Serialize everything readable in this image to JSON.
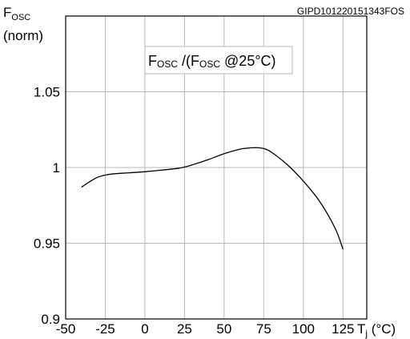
{
  "chart_data": {
    "type": "line",
    "doc_id": "GIPD101220151343FOS",
    "title": {
      "main": "F",
      "sub": "OSC",
      "mid": " /(F",
      "sub2": "OSC",
      "tail": " @25°C)"
    },
    "ylabel": {
      "main": "F",
      "sub": "OSC",
      "unit": "(norm)"
    },
    "xlabel": {
      "main": "T",
      "sub": "j",
      "unit": " (°C)"
    },
    "xlim": [
      -50,
      140
    ],
    "ylim": [
      0.9,
      1.1
    ],
    "xticks": [
      -50,
      -25,
      0,
      25,
      50,
      75,
      100,
      125
    ],
    "xtick_labels": [
      "-50",
      "-25",
      "0",
      "25",
      "50",
      "75",
      "100",
      "125"
    ],
    "yticks": [
      0.9,
      0.95,
      1.0,
      1.05
    ],
    "ytick_labels": [
      "0.9",
      "0.95",
      "1",
      "1.05"
    ],
    "grid": true,
    "series": [
      {
        "color": "#000000",
        "x": [
          -40,
          -35,
          -30,
          -25,
          -20,
          -10,
          0,
          10,
          20,
          25,
          30,
          40,
          50,
          60,
          65,
          70,
          75,
          80,
          90,
          100,
          110,
          120,
          125
        ],
        "y": [
          0.987,
          0.9905,
          0.9935,
          0.995,
          0.9958,
          0.9965,
          0.9972,
          0.9982,
          0.9993,
          1.0003,
          1.0018,
          1.0052,
          1.0091,
          1.0121,
          1.0128,
          1.0131,
          1.0125,
          1.01,
          1.0017,
          0.991,
          0.978,
          0.96,
          0.946
        ]
      }
    ]
  }
}
